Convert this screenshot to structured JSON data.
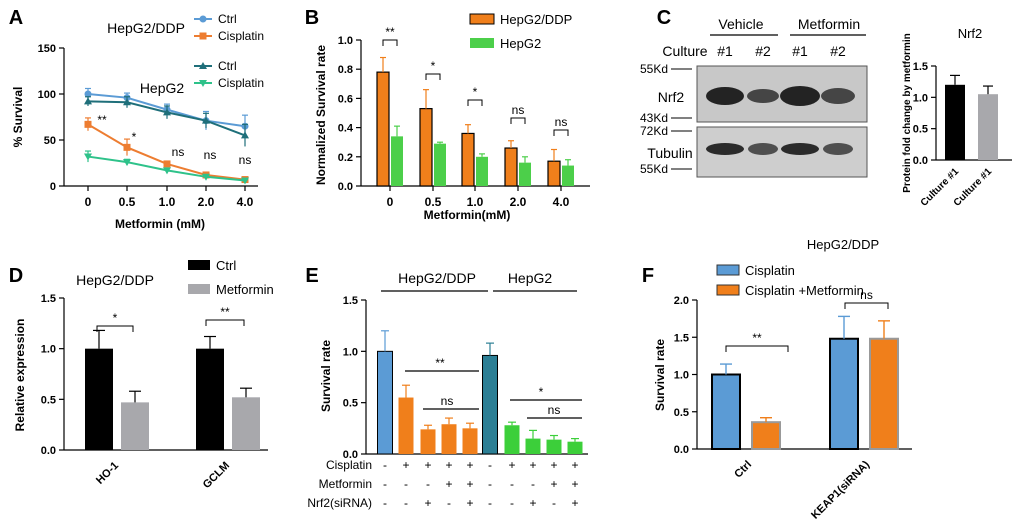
{
  "chart_data": [
    {
      "panel": "A",
      "type": "line",
      "ylabel": "% Survival",
      "xlabel": "Metformin (mM)",
      "categories": [
        "0",
        "0.5",
        "1.0",
        "2.0",
        "4.0"
      ],
      "ylim": [
        0,
        150
      ],
      "yticks": [
        "0",
        "50",
        "100",
        "150"
      ],
      "legend_groups": [
        "HepG2/DDP",
        "HepG2"
      ],
      "series": [
        {
          "name": "Ctrl",
          "group": "HepG2/DDP",
          "color": "#5b9bd5",
          "marker": "circle",
          "values": [
            100,
            96,
            83,
            71,
            65
          ],
          "errors": [
            6,
            5,
            6,
            10,
            12
          ]
        },
        {
          "name": "Cisplatin",
          "group": "HepG2/DDP",
          "color": "#ed7d31",
          "marker": "square",
          "values": [
            67,
            42,
            24,
            12,
            7
          ],
          "errors": [
            7,
            9,
            3,
            3,
            2
          ]
        },
        {
          "name": "Ctrl",
          "group": "HepG2",
          "color": "#1f6f7a",
          "marker": "triangle",
          "values": [
            92,
            91,
            80,
            71,
            55
          ],
          "errors": [
            5,
            6,
            7,
            8,
            12
          ]
        },
        {
          "name": "Cisplatin",
          "group": "HepG2",
          "color": "#2ec28a",
          "marker": "triangle-down",
          "values": [
            32,
            26,
            17,
            10,
            6
          ],
          "errors": [
            6,
            3,
            2,
            2,
            1
          ]
        }
      ],
      "significance": [
        "**",
        "*",
        "ns",
        "ns",
        "ns"
      ]
    },
    {
      "panel": "B",
      "type": "bar",
      "ylabel": "Normalized Survival rate",
      "xlabel": "Metformin(mM)",
      "categories": [
        "0",
        "0.5",
        "1.0",
        "2.0",
        "4.0"
      ],
      "ylim": [
        0,
        1.0
      ],
      "yticks": [
        "0.0",
        "0.2",
        "0.4",
        "0.6",
        "0.8",
        "1.0"
      ],
      "series": [
        {
          "name": "HepG2/DDP",
          "color": "#f07f1b",
          "values": [
            0.78,
            0.53,
            0.36,
            0.26,
            0.17
          ],
          "errors": [
            0.1,
            0.13,
            0.06,
            0.05,
            0.08
          ]
        },
        {
          "name": "HepG2",
          "color": "#4ccf4a",
          "values": [
            0.34,
            0.29,
            0.2,
            0.16,
            0.14
          ],
          "errors": [
            0.07,
            0.01,
            0.02,
            0.04,
            0.04
          ]
        }
      ],
      "significance": [
        "**",
        "*",
        "*",
        "ns",
        "ns"
      ]
    },
    {
      "panel": "C",
      "type": "bar",
      "title": "Nrf2",
      "ylabel": "Protein fold change by metformin",
      "categories": [
        "Culture #1",
        "Culture #1"
      ],
      "ylim": [
        0,
        1.5
      ],
      "yticks": [
        "0.0",
        "0.5",
        "1.0",
        "1.5"
      ],
      "values": [
        1.2,
        1.05
      ],
      "errors": [
        0.15,
        0.13
      ],
      "colors": [
        "#000000",
        "#a8a8ac"
      ],
      "blot": {
        "column_headers": [
          "Vehicle",
          "Metformin"
        ],
        "culture_label": "Culture",
        "lanes": [
          "#1",
          "#2",
          "#1",
          "#2"
        ],
        "bands": [
          "Nrf2",
          "Tubulin"
        ],
        "markers": [
          "55Kd",
          "43Kd",
          "72Kd",
          "55Kd"
        ]
      }
    },
    {
      "panel": "D",
      "type": "bar",
      "title": "HepG2/DDP",
      "ylabel": "Relative expression",
      "categories": [
        "HO-1",
        "GCLM"
      ],
      "ylim": [
        0,
        1.5
      ],
      "yticks": [
        "0.0",
        "0.5",
        "1.0",
        "1.5"
      ],
      "series": [
        {
          "name": "Ctrl",
          "color": "#000000",
          "values": [
            1.0,
            1.0
          ],
          "errors": [
            0.18,
            0.12
          ]
        },
        {
          "name": "Metformin",
          "color": "#a8a8ac",
          "values": [
            0.47,
            0.52
          ],
          "errors": [
            0.11,
            0.09
          ]
        }
      ],
      "significance": [
        "*",
        "**"
      ]
    },
    {
      "panel": "E",
      "type": "bar",
      "ylabel": "Survival rate",
      "ylim": [
        0,
        1.5
      ],
      "yticks": [
        "0.0",
        "0.5",
        "1.0",
        "1.5"
      ],
      "groups": [
        "HepG2/DDP",
        "HepG2"
      ],
      "values": [
        1.0,
        0.55,
        0.24,
        0.29,
        0.25,
        0.96,
        0.28,
        0.15,
        0.14,
        0.12
      ],
      "errors": [
        0.2,
        0.12,
        0.04,
        0.06,
        0.05,
        0.12,
        0.03,
        0.08,
        0.04,
        0.03
      ],
      "colors": [
        "#5b9bd5",
        "#f07f1b",
        "#f07f1b",
        "#f07f1b",
        "#f07f1b",
        "#2c7f95",
        "#3ccf3a",
        "#3ccf3a",
        "#3ccf3a",
        "#3ccf3a"
      ],
      "rows": [
        {
          "label": "Cisplatin",
          "marks": [
            "-",
            "+",
            "+",
            "+",
            "+",
            "-",
            "+",
            "+",
            "+",
            "+"
          ]
        },
        {
          "label": "Metformin",
          "marks": [
            "-",
            "-",
            "-",
            "+",
            "+",
            "-",
            "-",
            "-",
            "+",
            "+"
          ]
        },
        {
          "label": "Nrf2(siRNA)",
          "marks": [
            "-",
            "-",
            "+",
            "-",
            "+",
            "-",
            "-",
            "+",
            "-",
            "+"
          ]
        }
      ],
      "significance": [
        "**",
        "ns",
        "*",
        "ns"
      ]
    },
    {
      "panel": "F",
      "type": "bar",
      "title": "HepG2/DDP",
      "ylabel": "Survival rate",
      "categories": [
        "Ctrl",
        "KEAP1(siRNA)"
      ],
      "ylim": [
        0,
        2.0
      ],
      "yticks": [
        "0.0",
        "0.5",
        "1.0",
        "1.5",
        "2.0"
      ],
      "series": [
        {
          "name": "Cisplatin",
          "color": "#5b9bd5",
          "values": [
            1.0,
            1.48
          ],
          "errors": [
            0.14,
            0.3
          ]
        },
        {
          "name": "Cisplatin +Metformin",
          "color": "#f07f1b",
          "values": [
            0.36,
            1.48
          ],
          "errors": [
            0.06,
            0.24
          ]
        }
      ],
      "significance": [
        "**",
        "ns"
      ]
    }
  ]
}
